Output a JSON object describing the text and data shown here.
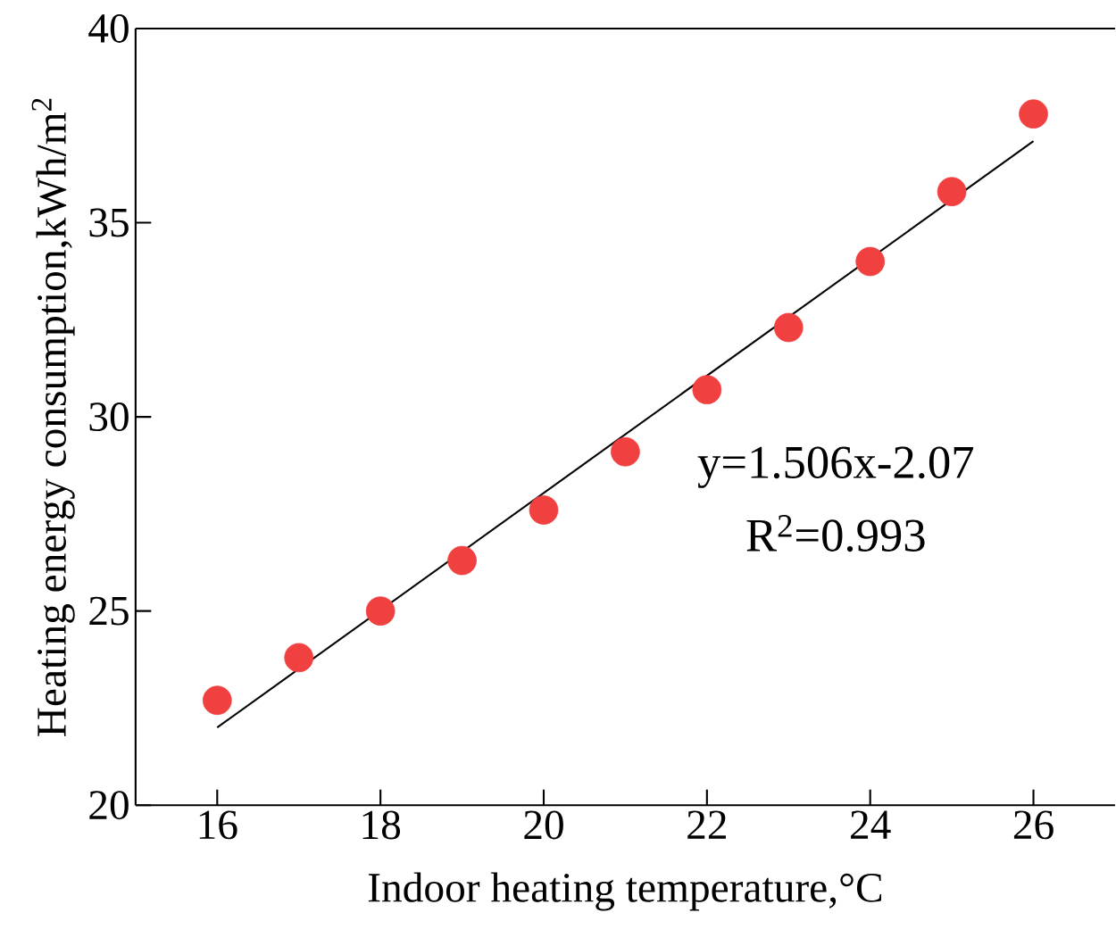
{
  "chart_data": {
    "type": "scatter",
    "xlabel": "Indoor heating temperature,°C",
    "ylabel": "Heating energy consumption,kWh/m$^{2}$",
    "xlim": [
      15,
      27
    ],
    "xticks": [
      16,
      18,
      20,
      22,
      24,
      26
    ],
    "ylim": [
      20,
      40
    ],
    "yticks": [
      20,
      25,
      30,
      35,
      40
    ],
    "annotations": [
      "y=1.506x-2.07",
      "R$^{2}$=0.993"
    ],
    "series": [
      {
        "marker": "circle",
        "color": "#f04040",
        "x": [
          16,
          17,
          18,
          19,
          20,
          21,
          22,
          23,
          24,
          25,
          26
        ],
        "values": [
          22.7,
          23.8,
          25.0,
          26.3,
          27.6,
          29.1,
          30.7,
          32.3,
          34.0,
          35.8,
          37.8
        ]
      },
      {
        "type": "line",
        "color": "#000000",
        "x": [
          16,
          26
        ],
        "values": [
          22.0,
          37.1
        ]
      }
    ]
  }
}
